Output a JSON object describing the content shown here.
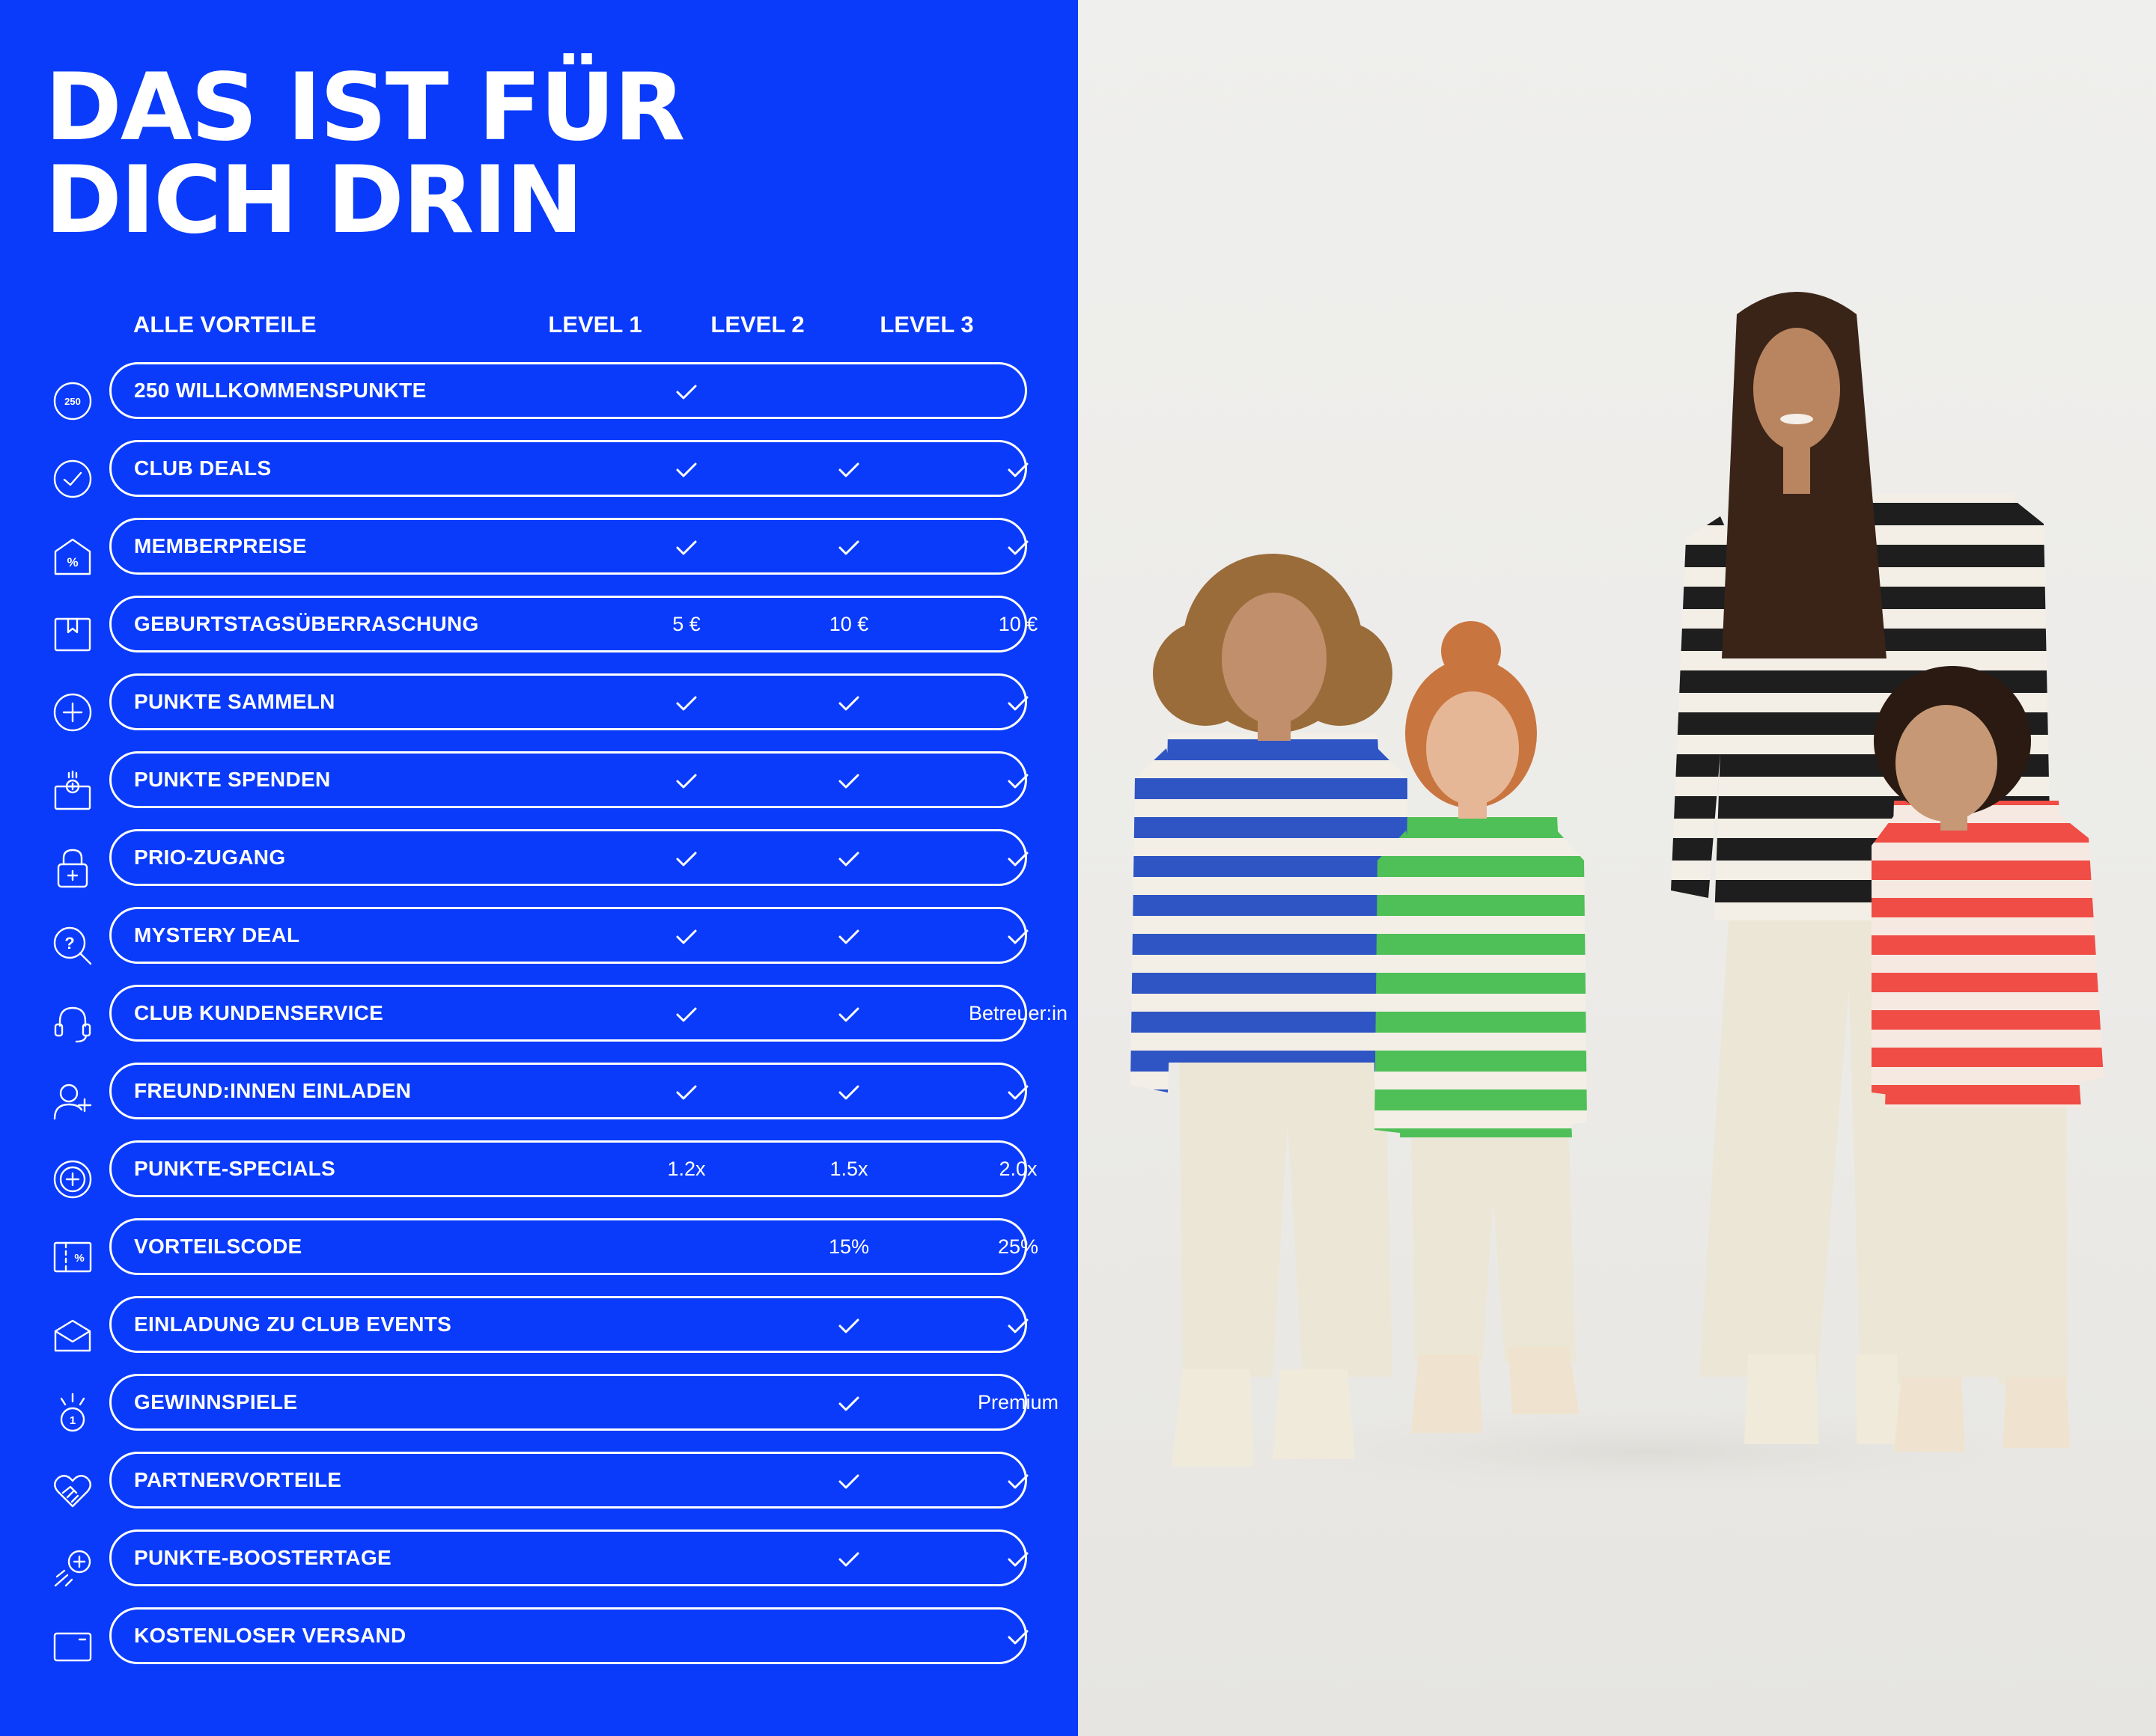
{
  "theme": {
    "blue": "#0a3bfa",
    "white": "#ffffff"
  },
  "title": {
    "line1": "DAS IST FÜR",
    "line2": "DICH DRIN"
  },
  "header": {
    "benefits": "ALLE VORTEILE",
    "level1": "LEVEL 1",
    "level2": "LEVEL 2",
    "level3": "LEVEL 3"
  },
  "rows": [
    {
      "icon": "welcome-points-250-icon",
      "icon_text": "250",
      "label": "250 WILLKOMMENSPUNKTE",
      "l1": "check",
      "l2": "",
      "l3": ""
    },
    {
      "icon": "check-circle-icon",
      "label": "CLUB DEALS",
      "l1": "check",
      "l2": "check",
      "l3": "check"
    },
    {
      "icon": "percent-tag-icon",
      "icon_text": "%",
      "label": "MEMBERPREISE",
      "l1": "check",
      "l2": "check",
      "l3": "check"
    },
    {
      "icon": "gift-box-icon",
      "label": "GEBURTSTAGSÜBERRASCHUNG",
      "l1": "5 €",
      "l2": "10 €",
      "l3": "10 €"
    },
    {
      "icon": "plus-circle-icon",
      "label": "PUNKTE SAMMELN",
      "l1": "check",
      "l2": "check",
      "l3": "check"
    },
    {
      "icon": "donation-box-icon",
      "label": "PUNKTE SPENDEN",
      "l1": "check",
      "l2": "check",
      "l3": "check"
    },
    {
      "icon": "lock-plus-icon",
      "label": "PRIO-ZUGANG",
      "l1": "check",
      "l2": "check",
      "l3": "check"
    },
    {
      "icon": "mystery-search-icon",
      "label": "MYSTERY DEAL",
      "l1": "check",
      "l2": "check",
      "l3": "check"
    },
    {
      "icon": "headset-icon",
      "label": "CLUB KUNDENSERVICE",
      "l1": "check",
      "l2": "check",
      "l3": "Betreuer:in"
    },
    {
      "icon": "add-user-icon",
      "label": "FREUND:INNEN EINLADEN",
      "l1": "check",
      "l2": "check",
      "l3": "check"
    },
    {
      "icon": "points-coin-icon",
      "label": "PUNKTE-SPECIALS",
      "l1": "1.2x",
      "l2": "1.5x",
      "l3": "2.0x"
    },
    {
      "icon": "voucher-percent-icon",
      "icon_text": "%",
      "label": "VORTEILSCODE",
      "l1": "",
      "l2": "15%",
      "l3": "25%"
    },
    {
      "icon": "envelope-icon",
      "label": "EINLADUNG ZU CLUB EVENTS",
      "l1": "",
      "l2": "check",
      "l3": "check"
    },
    {
      "icon": "prize-medal-icon",
      "icon_text": "1",
      "label": "GEWINNSPIELE",
      "l1": "",
      "l2": "check",
      "l3": "Premium"
    },
    {
      "icon": "handshake-heart-icon",
      "label": "PARTNERVORTEILE",
      "l1": "",
      "l2": "check",
      "l3": "check"
    },
    {
      "icon": "boost-plus-icon",
      "label": "PUNKTE-BOOSTERTAGE",
      "l1": "",
      "l2": "check",
      "l3": "check"
    },
    {
      "icon": "shipping-card-icon",
      "label": "KOSTENLOSER VERSAND",
      "l1": "",
      "l2": "",
      "l3": "check"
    }
  ],
  "photo": {
    "subject": "family-in-striped-shirts",
    "shirt_colors": [
      "#2f55c4",
      "#4fbf57",
      "#1e1e1e",
      "#ef4d45"
    ],
    "pants_color": "#ece6d6",
    "skin": "#b98561",
    "hair": "#3a2418"
  }
}
